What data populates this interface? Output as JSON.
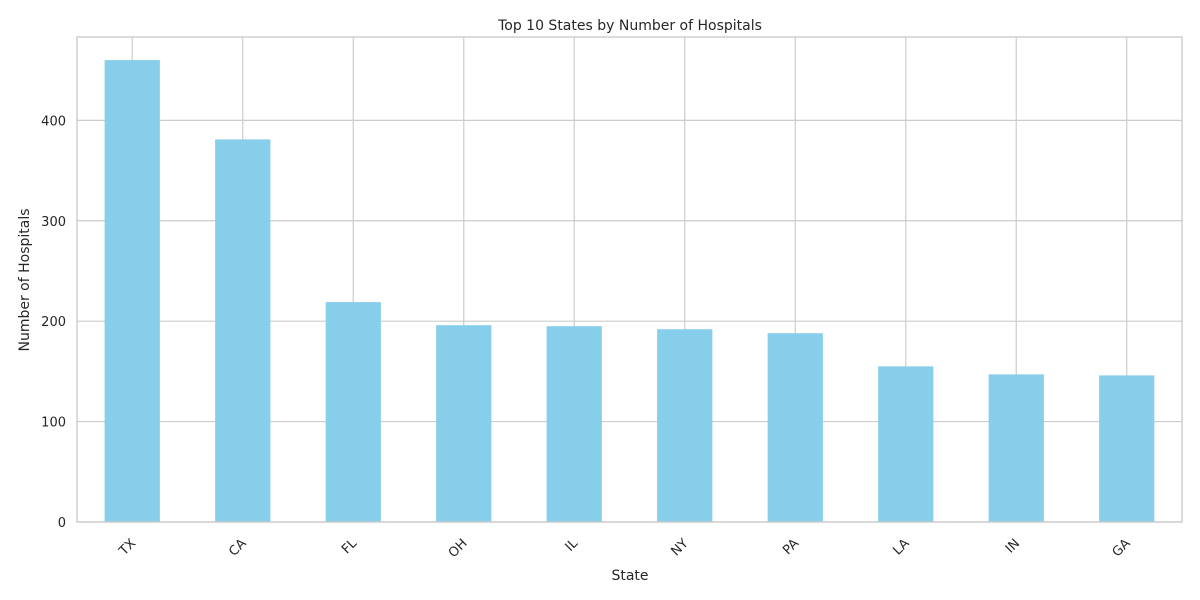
{
  "chart_data": {
    "type": "bar",
    "title": "Top 10 States by Number of Hospitals",
    "xlabel": "State",
    "ylabel": "Number of Hospitals",
    "categories": [
      "TX",
      "CA",
      "FL",
      "OH",
      "IL",
      "NY",
      "PA",
      "LA",
      "IN",
      "GA"
    ],
    "values": [
      460,
      381,
      219,
      196,
      195,
      192,
      188,
      155,
      147,
      146
    ],
    "ylim": [
      0,
      483
    ],
    "yticks": [
      0,
      100,
      200,
      300,
      400
    ],
    "ytick_labels": [
      "0",
      "100",
      "200",
      "300",
      "400"
    ],
    "bar_color": "#87ceeb",
    "grid": true,
    "xtick_rotation": "45 degrees"
  }
}
